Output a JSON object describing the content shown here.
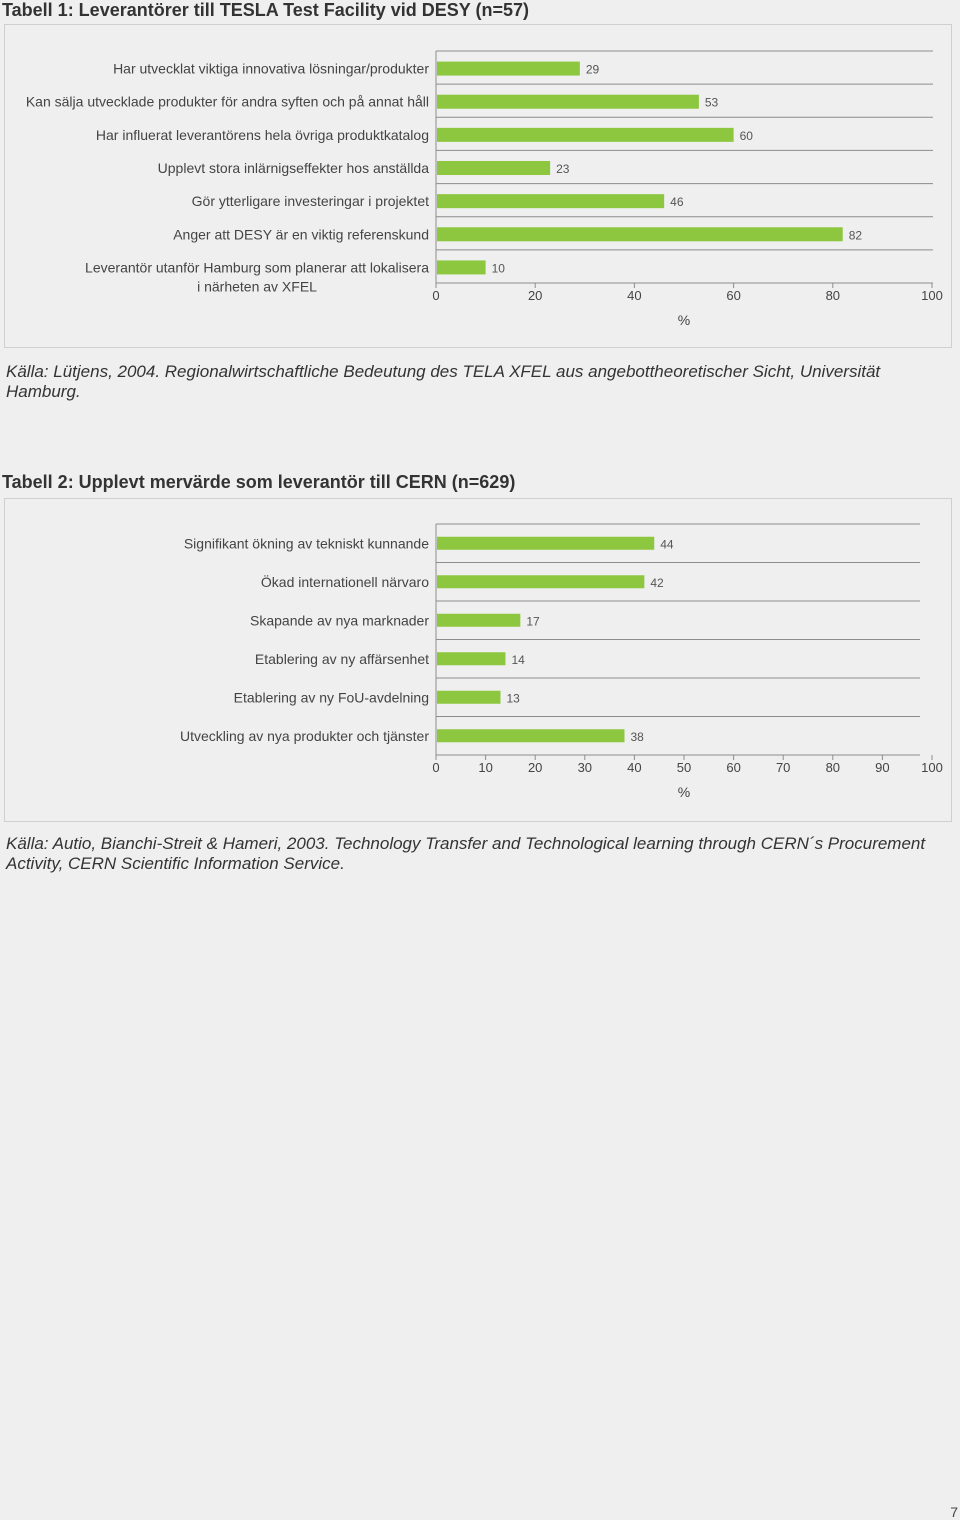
{
  "page_number": "7",
  "colors": {
    "bar": "#8dc63f",
    "grid": "#8c8c8c",
    "background": "#efefef"
  },
  "chart_data": [
    {
      "type": "bar",
      "orientation": "horizontal",
      "title": "Tabell 1: Leverantörer till TESLA Test Facility vid DESY (n=57)",
      "categories": [
        [
          "Har utvecklat viktiga innovativa lösningar/produkter"
        ],
        [
          "Kan sälja utvecklade produkter för andra syften och på annat håll"
        ],
        [
          "Har influerat leverantörens hela övriga produktkatalog"
        ],
        [
          "Upplevt stora inlärnigseffekter hos anställda"
        ],
        [
          "Gör ytterligare investeringar i projektet"
        ],
        [
          "Anger att DESY är en viktig referenskund"
        ],
        [
          "Leverantör utanför Hamburg som planerar att lokalisera",
          "i närheten av XFEL"
        ]
      ],
      "values": [
        29,
        53,
        60,
        23,
        46,
        82,
        10
      ],
      "xlabel": "%",
      "xlim": [
        0,
        100
      ],
      "xticks": [
        0,
        20,
        40,
        60,
        80,
        100
      ],
      "grid": true,
      "source": "Källa: Lütjens, 2004. Regionalwirtschaftliche Bedeutung des TELA XFEL aus angebottheoretischer Sicht, Universität Hamburg."
    },
    {
      "type": "bar",
      "orientation": "horizontal",
      "title": "Tabell 2: Upplevt mervärde som leverantör till CERN (n=629)",
      "categories": [
        [
          "Signifikant ökning av tekniskt kunnande"
        ],
        [
          "Ökad internationell närvaro"
        ],
        [
          "Skapande av nya marknader"
        ],
        [
          "Etablering av ny affärsenhet"
        ],
        [
          "Etablering av ny FoU-avdelning"
        ],
        [
          "Utveckling av nya produkter och tjänster"
        ]
      ],
      "values": [
        44,
        42,
        17,
        14,
        13,
        38
      ],
      "xlabel": "%",
      "xlim": [
        0,
        100
      ],
      "xticks": [
        0,
        10,
        20,
        30,
        40,
        50,
        60,
        70,
        80,
        90,
        100
      ],
      "grid": true,
      "source": "Källa: Autio, Bianchi-Streit & Hameri, 2003. Technology Transfer and Technological learning through CERN´s Procurement Activity, CERN Scientific Information Service."
    }
  ]
}
